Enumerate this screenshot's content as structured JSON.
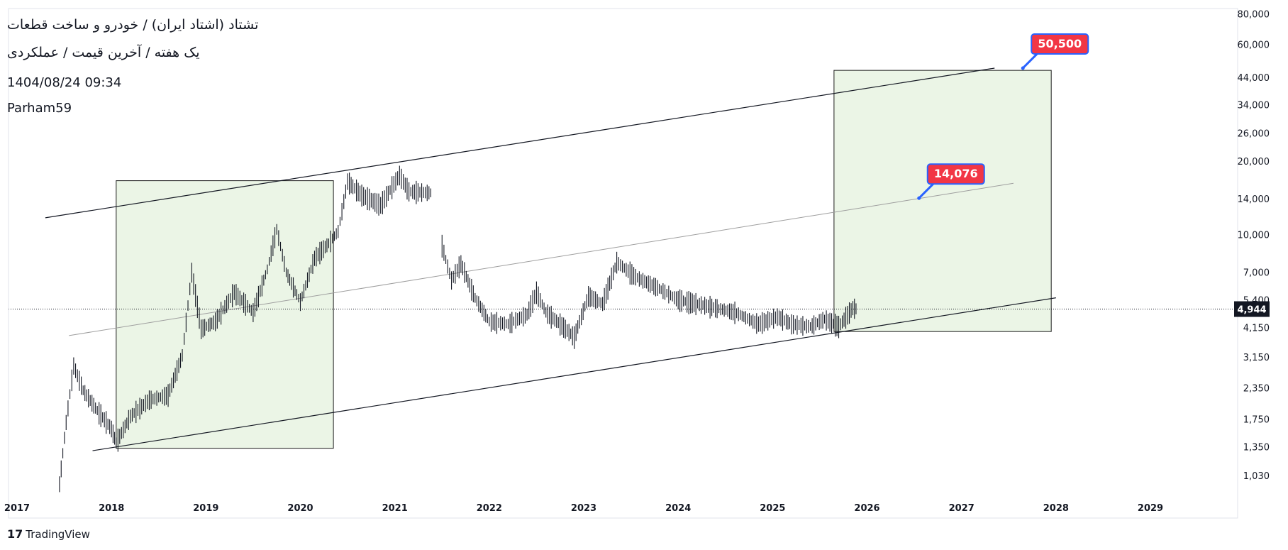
{
  "header": {
    "title": "تشتاد (اشتاد ایران) / خودرو و ساخت قطعات",
    "interval": "یک هفته / آخرین قیمت / عملکردی",
    "datetime": "1404/08/24  09:34",
    "author": "Parham59"
  },
  "footer": {
    "brand": "TradingView",
    "brand_mark": "17"
  },
  "colors": {
    "zone_fill": "#e7f3e2",
    "zone_border": "#1b1b1b",
    "channel": "#131722",
    "midline": "#9e9e9e",
    "label_bg": "#f23645",
    "label_border": "#2962ff",
    "candle": "#131722",
    "last_price_bg": "#131722"
  },
  "chart_data": {
    "type": "line",
    "scale": "log",
    "x_axis": {
      "tick_labels": [
        "2017",
        "2018",
        "2019",
        "2020",
        "2021",
        "2022",
        "2023",
        "2024",
        "2025",
        "2026",
        "2027",
        "2028",
        "2029"
      ]
    },
    "y_axis": {
      "tick_labels": [
        "80,000",
        "60,000",
        "44,000",
        "34,000",
        "26,000",
        "20,000",
        "14,000",
        "10,000",
        "7,000",
        "5,400",
        "4,150",
        "3,150",
        "2,350",
        "1,750",
        "1,350",
        "1,030"
      ],
      "ylim": [
        900,
        82000
      ]
    },
    "last_price": {
      "label": "4,944",
      "value": 4944
    },
    "price_path": [
      {
        "x": 2017.45,
        "y": 950
      },
      {
        "x": 2017.52,
        "y": 1700
      },
      {
        "x": 2017.6,
        "y": 2900
      },
      {
        "x": 2017.7,
        "y": 2300
      },
      {
        "x": 2017.85,
        "y": 1900
      },
      {
        "x": 2018.0,
        "y": 1600
      },
      {
        "x": 2018.05,
        "y": 1400
      },
      {
        "x": 2018.2,
        "y": 1800
      },
      {
        "x": 2018.4,
        "y": 2100
      },
      {
        "x": 2018.6,
        "y": 2200
      },
      {
        "x": 2018.75,
        "y": 3200
      },
      {
        "x": 2018.85,
        "y": 7000
      },
      {
        "x": 2018.95,
        "y": 4100
      },
      {
        "x": 2019.1,
        "y": 4400
      },
      {
        "x": 2019.3,
        "y": 5800
      },
      {
        "x": 2019.5,
        "y": 4800
      },
      {
        "x": 2019.65,
        "y": 7200
      },
      {
        "x": 2019.75,
        "y": 10500
      },
      {
        "x": 2019.85,
        "y": 7000
      },
      {
        "x": 2020.0,
        "y": 5300
      },
      {
        "x": 2020.15,
        "y": 8000
      },
      {
        "x": 2020.3,
        "y": 9200
      },
      {
        "x": 2020.4,
        "y": 10300
      },
      {
        "x": 2020.5,
        "y": 16500
      },
      {
        "x": 2020.65,
        "y": 14500
      },
      {
        "x": 2020.85,
        "y": 13200
      },
      {
        "x": 2021.05,
        "y": 17500
      },
      {
        "x": 2021.15,
        "y": 15000
      },
      {
        "x": 2021.4,
        "y": 14800
      },
      {
        "x": 2021.5,
        "y": 9000
      },
      {
        "x": 2021.6,
        "y": 6500
      },
      {
        "x": 2021.7,
        "y": 7600
      },
      {
        "x": 2021.85,
        "y": 5500
      },
      {
        "x": 2022.0,
        "y": 4400
      },
      {
        "x": 2022.2,
        "y": 4300
      },
      {
        "x": 2022.4,
        "y": 4700
      },
      {
        "x": 2022.5,
        "y": 5800
      },
      {
        "x": 2022.6,
        "y": 4800
      },
      {
        "x": 2022.75,
        "y": 4300
      },
      {
        "x": 2022.9,
        "y": 3800
      },
      {
        "x": 2023.05,
        "y": 5600
      },
      {
        "x": 2023.2,
        "y": 5200
      },
      {
        "x": 2023.35,
        "y": 7700
      },
      {
        "x": 2023.55,
        "y": 6700
      },
      {
        "x": 2023.8,
        "y": 6000
      },
      {
        "x": 2024.0,
        "y": 5400
      },
      {
        "x": 2024.3,
        "y": 5100
      },
      {
        "x": 2024.6,
        "y": 4800
      },
      {
        "x": 2024.85,
        "y": 4300
      },
      {
        "x": 2025.05,
        "y": 4600
      },
      {
        "x": 2025.2,
        "y": 4300
      },
      {
        "x": 2025.4,
        "y": 4200
      },
      {
        "x": 2025.55,
        "y": 4500
      },
      {
        "x": 2025.7,
        "y": 4200
      },
      {
        "x": 2025.85,
        "y": 5000
      },
      {
        "x": 2025.9,
        "y": 4944
      }
    ],
    "drawings": {
      "channel_upper": [
        {
          "x": 2017.3,
          "y": 11700
        },
        {
          "x": 2027.35,
          "y": 48000
        }
      ],
      "channel_lower": [
        {
          "x": 2017.8,
          "y": 1300
        },
        {
          "x": 2028.0,
          "y": 5500
        }
      ],
      "channel_mid": [
        {
          "x": 2017.55,
          "y": 3850
        },
        {
          "x": 2027.55,
          "y": 16200
        }
      ],
      "zone_past": {
        "x1": 2018.05,
        "x2": 2020.35,
        "y1": 1330,
        "y2": 16600
      },
      "zone_future": {
        "x1": 2025.65,
        "x2": 2027.95,
        "y1": 4000,
        "y2": 47000
      },
      "callouts": [
        {
          "label": "50,500",
          "x": 2027.65,
          "y": 48000
        },
        {
          "label": "14,076",
          "x": 2026.55,
          "y": 14076
        }
      ]
    }
  }
}
